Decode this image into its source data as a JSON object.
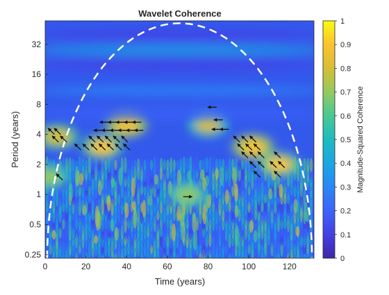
{
  "chart_data": {
    "type": "heatmap",
    "title": "Wavelet Coherence",
    "xlabel": "Time (years)",
    "ylabel": "Period (years)",
    "colorbar_label": "Magnitude-Squared Coherence",
    "colormap": "parula",
    "x_ticks": [
      0,
      20,
      40,
      60,
      80,
      100,
      120
    ],
    "xlim": [
      0,
      132
    ],
    "y_scale": "log2",
    "y_ticks": [
      0.25,
      0.5,
      1,
      2,
      4,
      8,
      16,
      32
    ],
    "y_tick_labels": [
      "0.25",
      "0.5",
      "1",
      "2",
      "4",
      "8",
      "16",
      "32"
    ],
    "ylim": [
      0.23,
      55
    ],
    "color_range": [
      0,
      1
    ],
    "colorbar_ticks": [
      0,
      0.1,
      0.2,
      0.3,
      0.4,
      0.5,
      0.6,
      0.7,
      0.8,
      0.9,
      1
    ],
    "colorbar_tick_labels": [
      "0",
      "0.1",
      "0.2",
      "0.3",
      "0.4",
      "0.5",
      "0.6",
      "0.7",
      "0.8",
      "0.9",
      "1"
    ],
    "cone_of_influence": {
      "style": "white dashed",
      "peak_time": 66,
      "peak_period": 52,
      "left_edge_time": 1,
      "right_edge_time": 131
    },
    "high_coherence_regions": [
      {
        "time": 6,
        "period": 3.8,
        "coherence": 0.8
      },
      {
        "time": 2,
        "period": 1.5,
        "coherence": 0.7
      },
      {
        "time": 28,
        "period": 3.0,
        "coherence": 0.85
      },
      {
        "time": 40,
        "period": 5.0,
        "coherence": 0.9
      },
      {
        "time": 80,
        "period": 5.0,
        "coherence": 0.75
      },
      {
        "time": 102,
        "period": 3.0,
        "coherence": 0.9
      },
      {
        "time": 115,
        "period": 2.0,
        "coherence": 0.85
      },
      {
        "time": 70,
        "period": 1.0,
        "coherence": 0.7
      }
    ],
    "phase_arrows": [
      {
        "time": 3,
        "period": 4.3,
        "direction": "up-left"
      },
      {
        "time": 6,
        "period": 4.3,
        "direction": "up-left"
      },
      {
        "time": 5,
        "period": 3.6,
        "direction": "up-left"
      },
      {
        "time": 9,
        "period": 3.6,
        "direction": "up-left"
      },
      {
        "time": 7,
        "period": 1.5,
        "direction": "up-left"
      },
      {
        "time": 29,
        "period": 5.3,
        "direction": "left"
      },
      {
        "time": 33,
        "period": 5.3,
        "direction": "left"
      },
      {
        "time": 37,
        "period": 5.3,
        "direction": "left"
      },
      {
        "time": 41,
        "period": 5.3,
        "direction": "left"
      },
      {
        "time": 45,
        "period": 5.3,
        "direction": "left"
      },
      {
        "time": 26,
        "period": 4.4,
        "direction": "left"
      },
      {
        "time": 30,
        "period": 4.4,
        "direction": "left"
      },
      {
        "time": 34,
        "period": 4.4,
        "direction": "left"
      },
      {
        "time": 38,
        "period": 4.4,
        "direction": "left"
      },
      {
        "time": 42,
        "period": 4.4,
        "direction": "left"
      },
      {
        "time": 46,
        "period": 4.4,
        "direction": "left"
      },
      {
        "time": 23,
        "period": 3.6,
        "direction": "up-left"
      },
      {
        "time": 27,
        "period": 3.6,
        "direction": "up-left"
      },
      {
        "time": 31,
        "period": 3.6,
        "direction": "up-left"
      },
      {
        "time": 35,
        "period": 3.6,
        "direction": "up-left"
      },
      {
        "time": 39,
        "period": 3.6,
        "direction": "up-left"
      },
      {
        "time": 16,
        "period": 3.0,
        "direction": "up-left"
      },
      {
        "time": 20,
        "period": 3.0,
        "direction": "up-left"
      },
      {
        "time": 24,
        "period": 3.0,
        "direction": "up-left"
      },
      {
        "time": 28,
        "period": 3.0,
        "direction": "up-left"
      },
      {
        "time": 32,
        "period": 3.0,
        "direction": "up-left"
      },
      {
        "time": 36,
        "period": 3.0,
        "direction": "up-left"
      },
      {
        "time": 40,
        "period": 3.0,
        "direction": "up-left"
      },
      {
        "time": 82,
        "period": 7.5,
        "direction": "left"
      },
      {
        "time": 85,
        "period": 5.6,
        "direction": "left"
      },
      {
        "time": 84,
        "period": 4.5,
        "direction": "left"
      },
      {
        "time": 88,
        "period": 4.5,
        "direction": "left"
      },
      {
        "time": 94,
        "period": 3.6,
        "direction": "up-left"
      },
      {
        "time": 98,
        "period": 3.6,
        "direction": "up-left"
      },
      {
        "time": 102,
        "period": 3.6,
        "direction": "up-left"
      },
      {
        "time": 96,
        "period": 3.0,
        "direction": "up-left"
      },
      {
        "time": 100,
        "period": 3.0,
        "direction": "up-left"
      },
      {
        "time": 104,
        "period": 3.0,
        "direction": "up-left"
      },
      {
        "time": 98,
        "period": 2.5,
        "direction": "up-left"
      },
      {
        "time": 102,
        "period": 2.5,
        "direction": "up-left"
      },
      {
        "time": 106,
        "period": 2.5,
        "direction": "up-left"
      },
      {
        "time": 114,
        "period": 2.5,
        "direction": "up-left"
      },
      {
        "time": 102,
        "period": 2.0,
        "direction": "up-left"
      },
      {
        "time": 106,
        "period": 2.0,
        "direction": "up-left"
      },
      {
        "time": 112,
        "period": 2.0,
        "direction": "up-left"
      },
      {
        "time": 116,
        "period": 2.0,
        "direction": "up-left"
      },
      {
        "time": 104,
        "period": 1.6,
        "direction": "up-left"
      },
      {
        "time": 114,
        "period": 1.6,
        "direction": "up-left"
      },
      {
        "time": 70,
        "period": 0.95,
        "direction": "right"
      }
    ]
  }
}
